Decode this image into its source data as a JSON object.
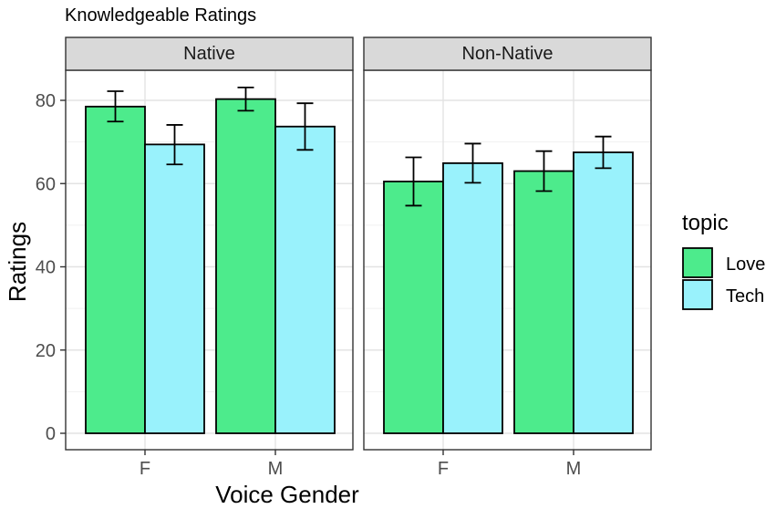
{
  "chart_data": {
    "type": "bar",
    "title": "Knowledgeable Ratings",
    "xlabel": "Voice Gender",
    "ylabel": "Ratings",
    "ylim": [
      0,
      90
    ],
    "yticks": [
      0,
      20,
      40,
      60,
      80
    ],
    "grid": true,
    "categories": [
      "F",
      "M"
    ],
    "legend": {
      "title": "topic",
      "position": "right",
      "entries": [
        {
          "name": "Love",
          "color": "#4deb8c"
        },
        {
          "name": "Tech",
          "color": "#99f2fc"
        }
      ]
    },
    "facets": [
      {
        "label": "Native",
        "series": [
          {
            "name": "Love",
            "values": [
              78.5,
              80.3
            ],
            "error_low": [
              74.9,
              77.5
            ],
            "error_high": [
              82.2,
              83.1
            ]
          },
          {
            "name": "Tech",
            "values": [
              69.4,
              73.7
            ],
            "error_low": [
              64.6,
              68.1
            ],
            "error_high": [
              74.1,
              79.3
            ]
          }
        ]
      },
      {
        "label": "Non-Native",
        "series": [
          {
            "name": "Love",
            "values": [
              60.5,
              63.0
            ],
            "error_low": [
              54.7,
              58.2
            ],
            "error_high": [
              66.3,
              67.8
            ]
          },
          {
            "name": "Tech",
            "values": [
              64.9,
              67.5
            ],
            "error_low": [
              60.2,
              63.7
            ],
            "error_high": [
              69.6,
              71.3
            ]
          }
        ]
      }
    ]
  }
}
